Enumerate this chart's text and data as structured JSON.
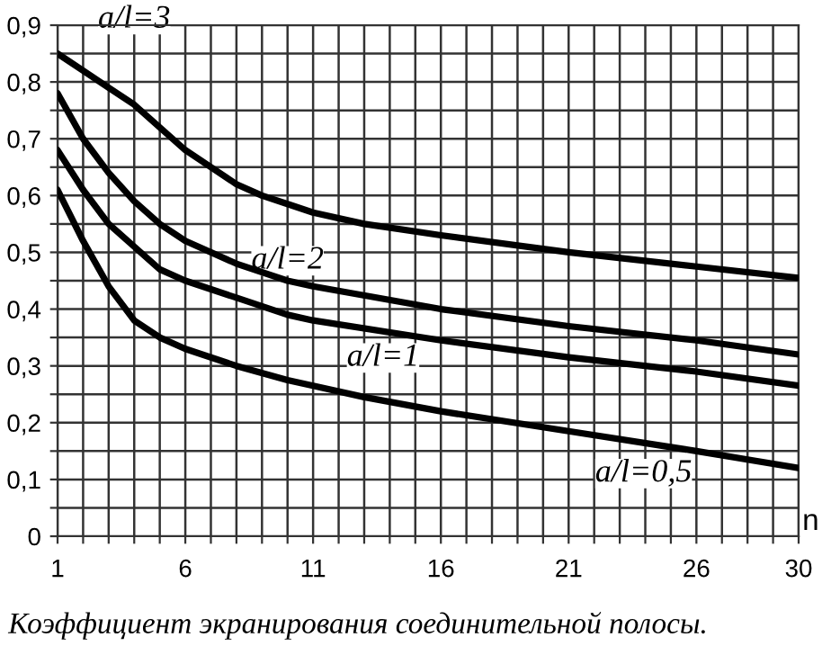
{
  "chart_data": {
    "type": "line",
    "xlabel": "n",
    "xlim": [
      1,
      30
    ],
    "ylim": [
      0,
      0.9
    ],
    "xticks": [
      1,
      {
        "value": 2,
        "label": null
      },
      {
        "value": 3,
        "label": null
      },
      {
        "value": 4,
        "label": null
      },
      {
        "value": 5,
        "label": null
      },
      6,
      {
        "value": 7,
        "label": null
      },
      {
        "value": 8,
        "label": null
      },
      {
        "value": 9,
        "label": null
      },
      {
        "value": 10,
        "label": null
      },
      11,
      {
        "value": 12,
        "label": null
      },
      {
        "value": 13,
        "label": null
      },
      {
        "value": 14,
        "label": null
      },
      {
        "value": 15,
        "label": null
      },
      16,
      {
        "value": 17,
        "label": null
      },
      {
        "value": 18,
        "label": null
      },
      {
        "value": 19,
        "label": null
      },
      {
        "value": 20,
        "label": null
      },
      21,
      {
        "value": 22,
        "label": null
      },
      {
        "value": 23,
        "label": null
      },
      {
        "value": 24,
        "label": null
      },
      {
        "value": 25,
        "label": null
      },
      26,
      {
        "value": 27,
        "label": null
      },
      {
        "value": 28,
        "label": null
      },
      {
        "value": 29,
        "label": null
      },
      30
    ],
    "yticks": [
      0,
      {
        "value": 0.05,
        "label": null
      },
      {
        "value": 0.1,
        "label": "0,1"
      },
      {
        "value": 0.15,
        "label": null
      },
      {
        "value": 0.2,
        "label": "0,2"
      },
      {
        "value": 0.25,
        "label": null
      },
      {
        "value": 0.3,
        "label": "0,3"
      },
      {
        "value": 0.35,
        "label": null
      },
      {
        "value": 0.4,
        "label": "0,4"
      },
      {
        "value": 0.45,
        "label": null
      },
      {
        "value": 0.5,
        "label": "0,5"
      },
      {
        "value": 0.55,
        "label": null
      },
      {
        "value": 0.6,
        "label": "0,6"
      },
      {
        "value": 0.65,
        "label": null
      },
      {
        "value": 0.7,
        "label": "0,7"
      },
      {
        "value": 0.75,
        "label": null
      },
      {
        "value": 0.8,
        "label": "0,8"
      },
      {
        "value": 0.85,
        "label": null
      },
      {
        "value": 0.9,
        "label": "0,9"
      }
    ],
    "grid": true,
    "marker": "none",
    "line_style": "solid",
    "series": [
      {
        "name": "a/l=3",
        "color": "#000000",
        "x": [
          1,
          2,
          3,
          4,
          5,
          6,
          7,
          8,
          9,
          10,
          11,
          13,
          16,
          21,
          26,
          30
        ],
        "values": [
          0.85,
          0.82,
          0.79,
          0.76,
          0.72,
          0.68,
          0.65,
          0.62,
          0.6,
          0.585,
          0.57,
          0.55,
          0.53,
          0.5,
          0.475,
          0.455
        ]
      },
      {
        "name": "a/l=2",
        "color": "#000000",
        "x": [
          1,
          2,
          3,
          4,
          5,
          6,
          8,
          10,
          11,
          16,
          21,
          26,
          30
        ],
        "values": [
          0.78,
          0.7,
          0.64,
          0.59,
          0.55,
          0.52,
          0.48,
          0.45,
          0.44,
          0.4,
          0.37,
          0.345,
          0.32
        ]
      },
      {
        "name": "a/l=1",
        "color": "#000000",
        "x": [
          1,
          2,
          3,
          4,
          5,
          6,
          8,
          10,
          11,
          16,
          21,
          26,
          30
        ],
        "values": [
          0.68,
          0.61,
          0.55,
          0.51,
          0.47,
          0.45,
          0.42,
          0.39,
          0.38,
          0.345,
          0.315,
          0.29,
          0.265
        ]
      },
      {
        "name": "a/l=0,5",
        "color": "#000000",
        "x": [
          1,
          2,
          3,
          4,
          5,
          6,
          8,
          10,
          11,
          13,
          16,
          21,
          26,
          30
        ],
        "values": [
          0.61,
          0.52,
          0.44,
          0.38,
          0.35,
          0.33,
          0.3,
          0.275,
          0.265,
          0.245,
          0.22,
          0.185,
          0.15,
          0.12
        ]
      }
    ],
    "annotations": [
      "Коэффициент экранирования соединительной полосы."
    ]
  }
}
